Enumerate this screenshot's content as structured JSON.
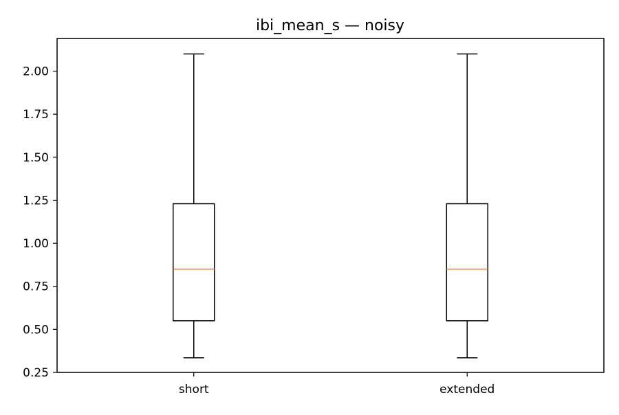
{
  "chart_data": {
    "type": "box",
    "title": "ibi_mean_s — noisy",
    "xlabel": "",
    "ylabel": "",
    "categories": [
      "short",
      "extended"
    ],
    "boxes": [
      {
        "category": "short",
        "whisker_low": 0.335,
        "q1": 0.55,
        "median": 0.85,
        "q3": 1.23,
        "whisker_high": 2.1
      },
      {
        "category": "extended",
        "whisker_low": 0.335,
        "q1": 0.55,
        "median": 0.85,
        "q3": 1.23,
        "whisker_high": 2.1
      }
    ],
    "ylim": [
      0.25,
      2.19
    ],
    "yticks": [
      0.25,
      0.5,
      0.75,
      1.0,
      1.25,
      1.5,
      1.75,
      2.0
    ],
    "ytick_labels": [
      "0.25",
      "0.50",
      "0.75",
      "1.00",
      "1.25",
      "1.50",
      "1.75",
      "2.00"
    ],
    "grid": false,
    "legend": "none",
    "colors": {
      "box": "#000000",
      "median": "#ff7f0e",
      "axes": "#000000",
      "background": "#ffffff"
    }
  }
}
